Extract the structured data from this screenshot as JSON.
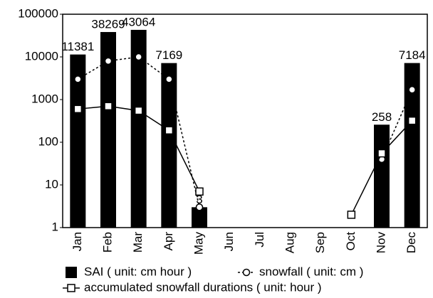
{
  "chart_data": {
    "type": "bar",
    "categories": [
      "Jan",
      "Feb",
      "Mar",
      "Apr",
      "May",
      "Jun",
      "Jul",
      "Aug",
      "Sep",
      "Oct",
      "Nov",
      "Dec"
    ],
    "log_scale": true,
    "ylim": [
      1,
      100000
    ],
    "yticks": [
      1,
      10,
      100,
      1000,
      10000,
      100000
    ],
    "grid": false,
    "legend": "bottom",
    "series": [
      {
        "name": "SAI ( unit: cm hour )",
        "type": "bar",
        "color": "#000000",
        "values": [
          11381,
          38269,
          43064,
          7169,
          3,
          null,
          null,
          null,
          null,
          null,
          258,
          7184
        ]
      },
      {
        "name": "snowfall ( unit: cm )",
        "type": "line",
        "marker": "circle",
        "dash": "dotted",
        "color": "#000000",
        "values": [
          3000,
          8000,
          10000,
          3000,
          3,
          null,
          null,
          null,
          null,
          null,
          40,
          1700
        ]
      },
      {
        "name": "accumulated snowfall durations  ( unit: hour )",
        "type": "line",
        "marker": "square",
        "dash": "solid",
        "color": "#000000",
        "values": [
          600,
          700,
          550,
          190,
          7,
          null,
          null,
          null,
          null,
          2,
          55,
          320
        ]
      }
    ]
  }
}
